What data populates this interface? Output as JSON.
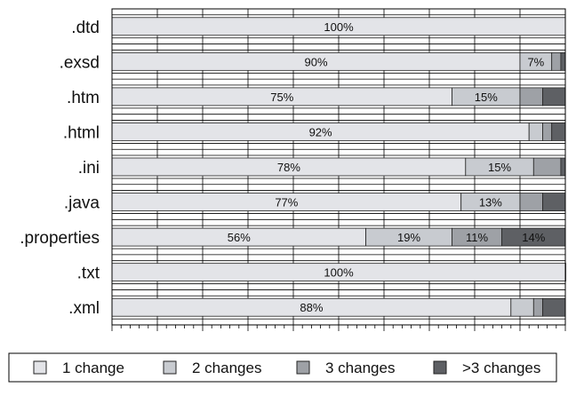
{
  "chart_data": {
    "type": "bar",
    "stacked": true,
    "orientation": "horizontal",
    "normalized_percent": true,
    "categories": [
      ".dtd",
      ".exsd",
      ".htm",
      ".html",
      ".ini",
      ".java",
      ".properties",
      ".txt",
      ".xml"
    ],
    "series": [
      {
        "name": "1 change",
        "color": "#e3e4e8",
        "values": [
          100,
          90,
          75,
          92,
          78,
          77,
          56,
          100,
          88
        ]
      },
      {
        "name": "2 changes",
        "color": "#c8cbd0",
        "values": [
          0,
          7,
          15,
          3,
          15,
          13,
          19,
          0,
          5
        ]
      },
      {
        "name": "3 changes",
        "color": "#9ea1a6",
        "values": [
          0,
          2,
          5,
          2,
          6,
          5,
          11,
          0,
          2
        ]
      },
      {
        "name": ">3 changes",
        "color": "#5e6064",
        "values": [
          0,
          1,
          5,
          3,
          1,
          5,
          14,
          0.5,
          5
        ]
      }
    ],
    "data_labels": [
      [
        "100%",
        "",
        "",
        ""
      ],
      [
        "90%",
        "7%",
        "",
        ""
      ],
      [
        "75%",
        "15%",
        "",
        ""
      ],
      [
        "92%",
        "",
        "",
        ""
      ],
      [
        "78%",
        "15%",
        "",
        ""
      ],
      [
        "77%",
        "13%",
        "",
        ""
      ],
      [
        "56%",
        "19%",
        "11%",
        "14%"
      ],
      [
        "100%",
        "",
        "",
        ""
      ],
      [
        "88%",
        "",
        "",
        ""
      ]
    ],
    "xlim": [
      0,
      100
    ],
    "grid": true,
    "legend_position": "bottom"
  }
}
